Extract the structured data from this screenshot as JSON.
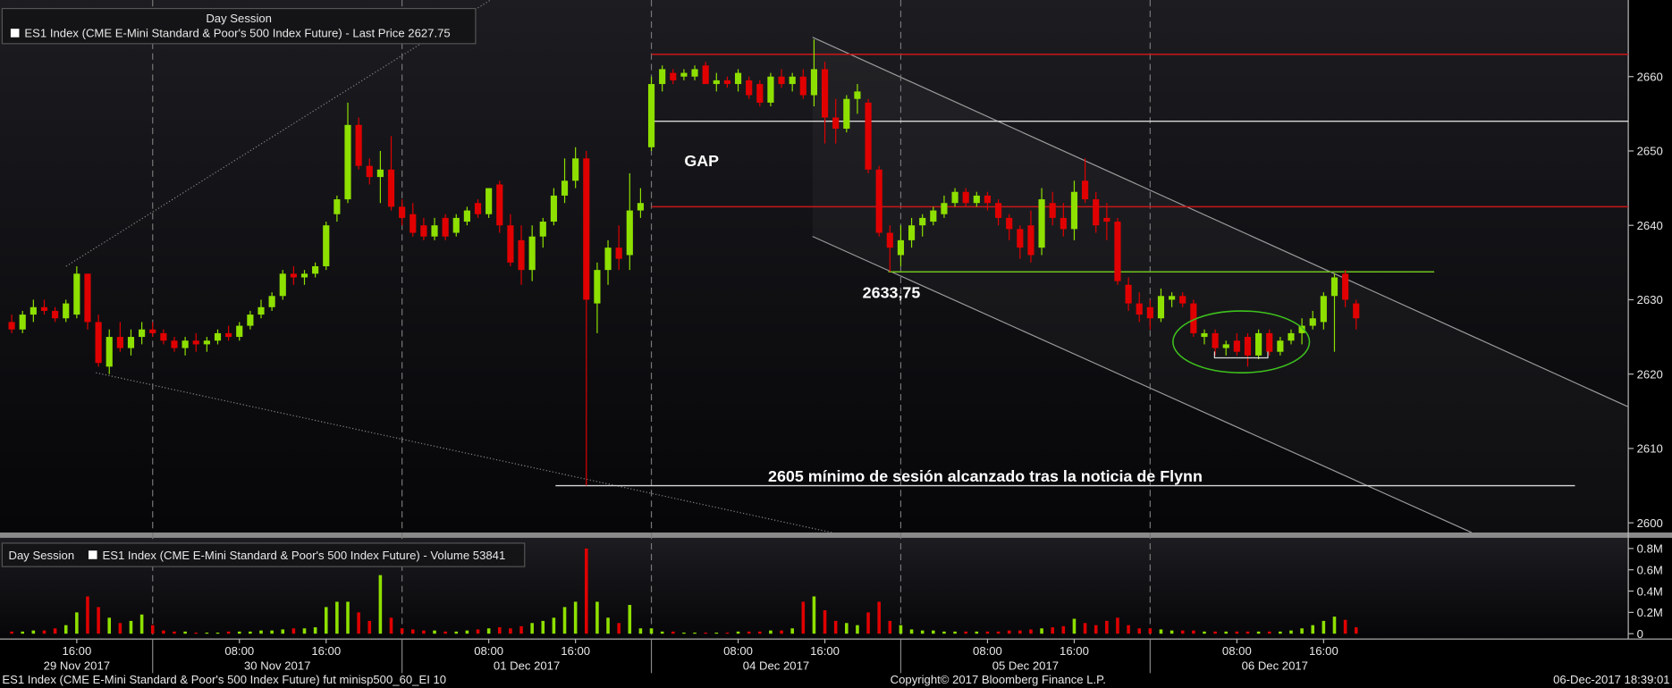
{
  "chart_data": [
    {
      "type": "candlestick",
      "legend_title": "Day Session",
      "title": "ES1 Index (CME E-Mini Standard & Poor's 500 Index Future) - Last Price 2627.75",
      "up_color": "#8ee000",
      "down_color": "#e00000",
      "ylim": [
        2598.7,
        2670.3
      ],
      "yticks": [
        2600,
        2610,
        2620,
        2630,
        2640,
        2650,
        2660
      ],
      "xlim": [
        -1.08,
        149.1
      ],
      "xticks": [
        {
          "value": 6,
          "label": "16:00"
        },
        {
          "value": 21,
          "label": "08:00"
        },
        {
          "value": 29,
          "label": "16:00"
        },
        {
          "value": 44,
          "label": "08:00"
        },
        {
          "value": 52,
          "label": "16:00"
        },
        {
          "value": 67,
          "label": "08:00"
        },
        {
          "value": 75,
          "label": "16:00"
        },
        {
          "value": 90,
          "label": "08:00"
        },
        {
          "value": 98,
          "label": "16:00"
        },
        {
          "value": 113,
          "label": "08:00"
        },
        {
          "value": 121,
          "label": "16:00"
        }
      ],
      "date_labels": [
        {
          "value": 6,
          "label": "29 Nov 2017"
        },
        {
          "value": 24.5,
          "label": "30 Nov 2017"
        },
        {
          "value": 47.5,
          "label": "01 Dec 2017"
        },
        {
          "value": 70.5,
          "label": "04 Dec 2017"
        },
        {
          "value": 93.5,
          "label": "05 Dec 2017"
        },
        {
          "value": 116.5,
          "label": "06 Dec 2017"
        }
      ],
      "ohlc": [
        [
          2627,
          2628,
          2625.5,
          2626
        ],
        [
          2626,
          2628.5,
          2625.5,
          2628
        ],
        [
          2628,
          2630,
          2627,
          2629
        ],
        [
          2629,
          2630,
          2628,
          2628.5
        ],
        [
          2628.5,
          2629,
          2627,
          2627.5
        ],
        [
          2627.5,
          2630,
          2627,
          2629.5
        ],
        [
          2628,
          2634.5,
          2627.5,
          2633.5
        ],
        [
          2633.5,
          2633.5,
          2626,
          2627
        ],
        [
          2627,
          2628,
          2621,
          2621.5
        ],
        [
          2621,
          2626,
          2620,
          2625
        ],
        [
          2625,
          2627,
          2623,
          2623.5
        ],
        [
          2623.5,
          2626,
          2622.5,
          2625
        ],
        [
          2625,
          2627,
          2624,
          2626
        ],
        [
          2626,
          2627,
          2625,
          2625.5
        ],
        [
          2625.5,
          2626,
          2624,
          2624.5
        ],
        [
          2624.5,
          2625,
          2623,
          2623.5
        ],
        [
          2623.5,
          2625,
          2622.5,
          2624.5
        ],
        [
          2624.5,
          2625.5,
          2623,
          2624
        ],
        [
          2624,
          2625,
          2623,
          2624.5
        ],
        [
          2624.5,
          2626,
          2624,
          2625.5
        ],
        [
          2625.5,
          2626.5,
          2624.5,
          2625
        ],
        [
          2625,
          2627,
          2624.5,
          2626.5
        ],
        [
          2626.5,
          2628.5,
          2626,
          2628
        ],
        [
          2628,
          2630,
          2627.5,
          2629
        ],
        [
          2629,
          2631,
          2628.5,
          2630.5
        ],
        [
          2630.5,
          2634,
          2630,
          2633.5
        ],
        [
          2633.5,
          2634.5,
          2632,
          2633
        ],
        [
          2633,
          2634,
          2632,
          2633.5
        ],
        [
          2633.5,
          2635,
          2633,
          2634.5
        ],
        [
          2634.5,
          2640.5,
          2634,
          2640
        ],
        [
          2641.5,
          2644,
          2640.5,
          2643.5
        ],
        [
          2643.5,
          2656.5,
          2643,
          2653.5
        ],
        [
          2653.5,
          2654.5,
          2647.5,
          2648
        ],
        [
          2648,
          2649,
          2645.5,
          2646.5
        ],
        [
          2646.5,
          2650,
          2643,
          2647.5
        ],
        [
          2647.5,
          2652,
          2642,
          2642.5
        ],
        [
          2642.5,
          2643.5,
          2640,
          2641
        ],
        [
          2641.5,
          2643,
          2638.5,
          2639
        ],
        [
          2640,
          2641,
          2638,
          2638.5
        ],
        [
          2638.5,
          2641,
          2638,
          2640
        ],
        [
          2641,
          2641.5,
          2638,
          2638.5
        ],
        [
          2639,
          2641.5,
          2638.5,
          2641
        ],
        [
          2640.5,
          2642.5,
          2640,
          2642
        ],
        [
          2643,
          2643.5,
          2641,
          2641.5
        ],
        [
          2641.5,
          2645,
          2641,
          2645
        ],
        [
          2645.5,
          2646,
          2639,
          2640
        ],
        [
          2640,
          2641.5,
          2634.5,
          2635
        ],
        [
          2638,
          2640,
          2632,
          2634
        ],
        [
          2634,
          2640,
          2632.5,
          2638.5
        ],
        [
          2638.5,
          2641,
          2637,
          2640.5
        ],
        [
          2640.5,
          2645,
          2640,
          2644
        ],
        [
          2644,
          2649,
          2643,
          2646
        ],
        [
          2646,
          2650.5,
          2645,
          2649
        ],
        [
          2649,
          2650,
          2605,
          2630
        ],
        [
          2629.5,
          2635,
          2625.5,
          2634
        ],
        [
          2634,
          2638,
          2632,
          2637
        ],
        [
          2637,
          2640,
          2634,
          2635.5
        ],
        [
          2636,
          2647,
          2634,
          2642
        ],
        [
          2642,
          2645,
          2641,
          2643
        ],
        [
          2650.5,
          2660,
          2650,
          2659
        ],
        [
          2659,
          2661.5,
          2658,
          2661
        ],
        [
          2660.5,
          2661,
          2659,
          2659.5
        ],
        [
          2660,
          2661,
          2659.5,
          2660.5
        ],
        [
          2660,
          2661.5,
          2659.5,
          2661
        ],
        [
          2661.5,
          2662,
          2659,
          2659
        ],
        [
          2659,
          2660.5,
          2658,
          2659.5
        ],
        [
          2659.5,
          2660,
          2658.5,
          2659
        ],
        [
          2659,
          2661,
          2658,
          2660.5
        ],
        [
          2659.5,
          2660,
          2657,
          2657.5
        ],
        [
          2659,
          2659.5,
          2656,
          2656.5
        ],
        [
          2656.5,
          2660.5,
          2656,
          2660
        ],
        [
          2660,
          2661,
          2658.5,
          2659
        ],
        [
          2659,
          2660.5,
          2658,
          2660
        ],
        [
          2660,
          2661,
          2657,
          2657.5
        ],
        [
          2657.5,
          2665,
          2656,
          2661
        ],
        [
          2661,
          2662,
          2651,
          2654.5
        ],
        [
          2654.5,
          2657,
          2651,
          2653
        ],
        [
          2653,
          2657.5,
          2652.5,
          2657
        ],
        [
          2657,
          2659,
          2655,
          2658
        ],
        [
          2656.5,
          2657,
          2647,
          2647.5
        ],
        [
          2647.5,
          2648,
          2638.5,
          2639
        ],
        [
          2639,
          2640,
          2633.75,
          2637
        ],
        [
          2636,
          2640,
          2634.5,
          2638
        ],
        [
          2638,
          2641,
          2637,
          2640
        ],
        [
          2640,
          2641.5,
          2638.5,
          2641
        ],
        [
          2640.5,
          2642.5,
          2640,
          2642
        ],
        [
          2641.5,
          2644,
          2641,
          2643
        ],
        [
          2643,
          2645,
          2642.5,
          2644.5
        ],
        [
          2644.5,
          2645,
          2642.5,
          2643
        ],
        [
          2643,
          2644.5,
          2642.5,
          2644
        ],
        [
          2644,
          2644.5,
          2642,
          2643
        ],
        [
          2643,
          2643.5,
          2640,
          2641
        ],
        [
          2641,
          2641.5,
          2638,
          2639.5
        ],
        [
          2639.5,
          2640,
          2635.5,
          2637
        ],
        [
          2640,
          2642,
          2635,
          2636
        ],
        [
          2637,
          2645,
          2636,
          2643.5
        ],
        [
          2643,
          2644.5,
          2640,
          2641
        ],
        [
          2641,
          2643,
          2638.5,
          2639.5
        ],
        [
          2639.5,
          2646,
          2638,
          2644.5
        ],
        [
          2646,
          2649,
          2643,
          2643.5
        ],
        [
          2643.5,
          2644.5,
          2639,
          2640
        ],
        [
          2641,
          2643,
          2638,
          2640.5
        ],
        [
          2640.5,
          2641,
          2632,
          2632.5
        ],
        [
          2632,
          2633,
          2628.5,
          2629.5
        ],
        [
          2629.5,
          2631,
          2627,
          2628
        ],
        [
          2629,
          2630,
          2626,
          2627.5
        ],
        [
          2627.5,
          2631.5,
          2627,
          2630.5
        ],
        [
          2630,
          2631,
          2629,
          2630.5
        ],
        [
          2630.5,
          2631,
          2629,
          2629.5
        ],
        [
          2629.5,
          2630,
          2625,
          2625.5
        ],
        [
          2625,
          2626,
          2624,
          2625.5
        ],
        [
          2625.5,
          2626,
          2622.5,
          2623.5
        ],
        [
          2623.5,
          2624.5,
          2622.5,
          2624
        ],
        [
          2624.5,
          2625.5,
          2622.5,
          2623
        ],
        [
          2625,
          2625.5,
          2621,
          2622.5
        ],
        [
          2622.5,
          2626,
          2622,
          2625.5
        ],
        [
          2625.5,
          2626,
          2622.5,
          2623
        ],
        [
          2623,
          2625,
          2622.5,
          2624.5
        ],
        [
          2624.5,
          2626,
          2624,
          2625.5
        ],
        [
          2625.5,
          2627.5,
          2624,
          2626.5
        ],
        [
          2626.5,
          2628.5,
          2626,
          2627.5
        ],
        [
          2627,
          2631,
          2626,
          2630.5
        ],
        [
          2630.5,
          2633.5,
          2623,
          2633
        ],
        [
          2633.5,
          2634,
          2629,
          2630
        ],
        [
          2629.5,
          2630,
          2626,
          2627.5
        ]
      ],
      "levels": [
        {
          "value": 2663,
          "color": "#c81818"
        },
        {
          "value": 2654,
          "color": "#d8d8d8"
        },
        {
          "value": 2642.5,
          "color": "#c81818"
        },
        {
          "value": 2633.75,
          "color": "#6fc21c"
        },
        {
          "value": 2605,
          "color": "#d8d8d8"
        }
      ],
      "annotations": [
        "GAP",
        {
          "value": 2633.75,
          "label": "2633,75"
        },
        "2605 mínimo de sesión alcanzado tras la noticia de Flynn"
      ]
    },
    {
      "type": "bar",
      "legend_title": "Day Session",
      "title": "ES1 Index (CME E-Mini Standard & Poor's 500 Index Future) - Volume 53841",
      "ylim": [
        -0.05,
        0.9
      ],
      "yticks": [
        0,
        {
          "value": 0.2,
          "label": "0.2M"
        },
        {
          "value": 0.4,
          "label": "0.4M"
        },
        {
          "value": 0.6,
          "label": "0.6M"
        },
        {
          "value": 0.8,
          "label": "0.8M"
        }
      ],
      "values": [
        0.02,
        0.02,
        0.03,
        0.03,
        0.05,
        0.08,
        0.2,
        0.35,
        0.25,
        0.15,
        0.1,
        0.12,
        0.18,
        0.08,
        0.03,
        0.02,
        0.02,
        0.01,
        0.01,
        0.01,
        0.02,
        0.02,
        0.02,
        0.03,
        0.03,
        0.04,
        0.05,
        0.05,
        0.06,
        0.25,
        0.3,
        0.3,
        0.2,
        0.12,
        0.55,
        0.15,
        0.05,
        0.04,
        0.03,
        0.03,
        0.02,
        0.02,
        0.03,
        0.04,
        0.05,
        0.06,
        0.05,
        0.07,
        0.1,
        0.12,
        0.15,
        0.25,
        0.3,
        0.8,
        0.3,
        0.15,
        0.1,
        0.27,
        0.05,
        0.05,
        0.02,
        0.02,
        0.01,
        0.01,
        0.01,
        0.01,
        0.01,
        0.02,
        0.02,
        0.02,
        0.03,
        0.03,
        0.05,
        0.3,
        0.35,
        0.22,
        0.12,
        0.1,
        0.08,
        0.2,
        0.3,
        0.12,
        0.08,
        0.04,
        0.03,
        0.03,
        0.02,
        0.02,
        0.02,
        0.02,
        0.02,
        0.02,
        0.03,
        0.03,
        0.04,
        0.05,
        0.06,
        0.07,
        0.14,
        0.1,
        0.08,
        0.12,
        0.15,
        0.08,
        0.05,
        0.05,
        0.04,
        0.03,
        0.03,
        0.03,
        0.02,
        0.02,
        0.02,
        0.02,
        0.02,
        0.02,
        0.02,
        0.02,
        0.03,
        0.05,
        0.08,
        0.12,
        0.16,
        0.13,
        0.06
      ]
    }
  ],
  "footer": {
    "left": "ES1 Index (CME E-Mini Standard & Poor's 500 Index Future) fut minisp500_60_EI 10",
    "center": "Copyright© 2017 Bloomberg Finance L.P.",
    "right": "06-Dec-2017 18:39:01"
  }
}
